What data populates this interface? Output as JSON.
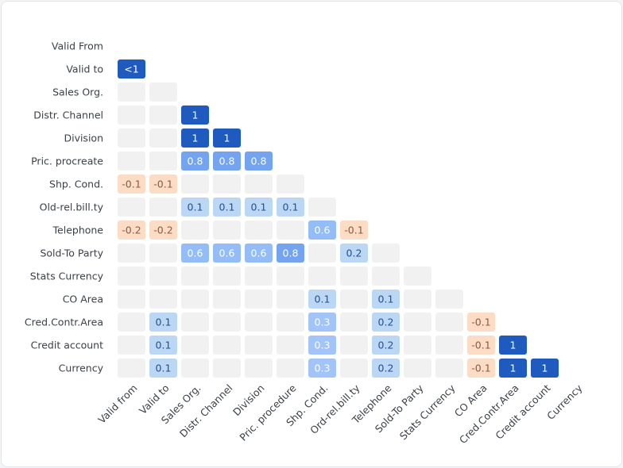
{
  "chart_data": {
    "type": "heatmap",
    "title": "",
    "row_labels": [
      "Valid From",
      "Valid to",
      "Sales Org.",
      "Distr. Channel",
      "Division",
      "Pric. procreate",
      "Shp. Cond.",
      "Old-rel.bill.ty",
      "Telephone",
      "Sold-To Party",
      "Stats Currency",
      "CO Area",
      "Cred.Contr.Area",
      "Credit account",
      "Currency"
    ],
    "column_labels": [
      "Valid from",
      "Valid to",
      "Sales Org.",
      "Distr. Channel",
      "Division",
      "Pric. procedure",
      "Shp. Cond.",
      "Ord-rel.bill.ty",
      "Telephone",
      "Sold-To Party",
      "Stats Currency",
      "CO Area",
      "Cred.Contr.Area",
      "Credit account",
      "Currency"
    ],
    "matrix": [
      [],
      [
        "<1"
      ],
      [
        null,
        null
      ],
      [
        null,
        null,
        "1"
      ],
      [
        null,
        null,
        "1",
        "1"
      ],
      [
        null,
        null,
        "0.8",
        "0.8",
        "0.8"
      ],
      [
        "-0.1",
        "-0.1",
        null,
        null,
        null,
        null
      ],
      [
        null,
        null,
        "0.1",
        "0.1",
        "0.1",
        "0.1",
        null
      ],
      [
        "-0.2",
        "-0.2",
        null,
        null,
        null,
        null,
        "0.6",
        "-0.1"
      ],
      [
        null,
        null,
        "0.6",
        "0.6",
        "0.6",
        "0.8",
        null,
        "0.2",
        null
      ],
      [
        null,
        null,
        null,
        null,
        null,
        null,
        null,
        null,
        null,
        null
      ],
      [
        null,
        null,
        null,
        null,
        null,
        null,
        "0.1",
        null,
        "0.1",
        null,
        null
      ],
      [
        null,
        "0.1",
        null,
        null,
        null,
        null,
        "0.3",
        null,
        "0.2",
        null,
        null,
        "-0.1"
      ],
      [
        null,
        "0.1",
        null,
        null,
        null,
        null,
        "0.3",
        null,
        "0.2",
        null,
        null,
        "-0.1",
        "1"
      ],
      [
        null,
        "0.1",
        null,
        null,
        null,
        null,
        "0.3",
        null,
        "0.2",
        null,
        null,
        "-0.1",
        "1",
        "1"
      ]
    ],
    "colors": {
      "strong_positive": "#1f5bbf",
      "high_positive": "#74a4f0",
      "mid_positive": "#94bcf6",
      "low_mid_positive": "#a3c4f8",
      "low_positive": "#bcd7f3",
      "low_positive_text": "#1f4f9e",
      "negative": "#fddcc6",
      "negative_text": "#8a5a44",
      "empty": "#f1f1f1"
    }
  }
}
